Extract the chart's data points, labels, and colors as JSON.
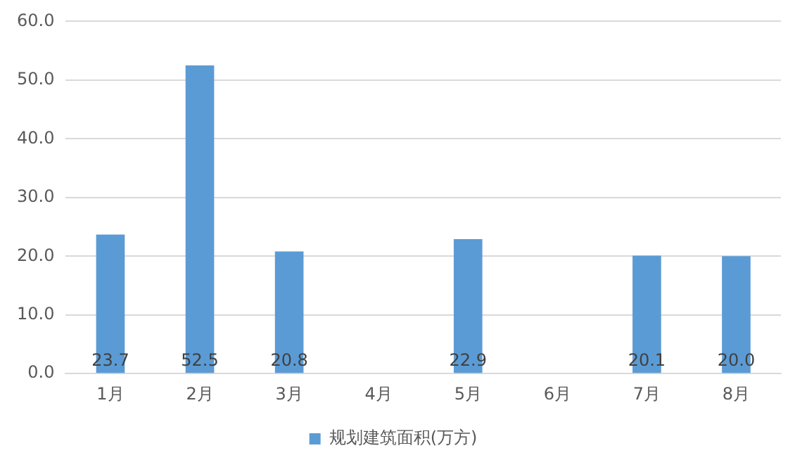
{
  "chart_data": {
    "type": "bar",
    "categories": [
      "1月",
      "2月",
      "3月",
      "4月",
      "5月",
      "6月",
      "7月",
      "8月"
    ],
    "series": [
      {
        "name": "规划建筑面积(万方)",
        "color": "#5b9bd5",
        "values": [
          23.7,
          52.5,
          20.8,
          null,
          22.9,
          null,
          20.1,
          20.0
        ],
        "value_labels": [
          "23.7",
          "52.5",
          "20.8",
          null,
          "22.9",
          null,
          "20.1",
          "20.0"
        ]
      }
    ],
    "ylim": [
      0,
      60
    ],
    "yticks": [
      {
        "value": 0,
        "label": "0.0"
      },
      {
        "value": 10,
        "label": "10.0"
      },
      {
        "value": 20,
        "label": "20.0"
      },
      {
        "value": 30,
        "label": "30.0"
      },
      {
        "value": 40,
        "label": "40.0"
      },
      {
        "value": 50,
        "label": "50.0"
      },
      {
        "value": 60,
        "label": "60.0"
      }
    ],
    "grid": "y",
    "legend": "bottom"
  }
}
